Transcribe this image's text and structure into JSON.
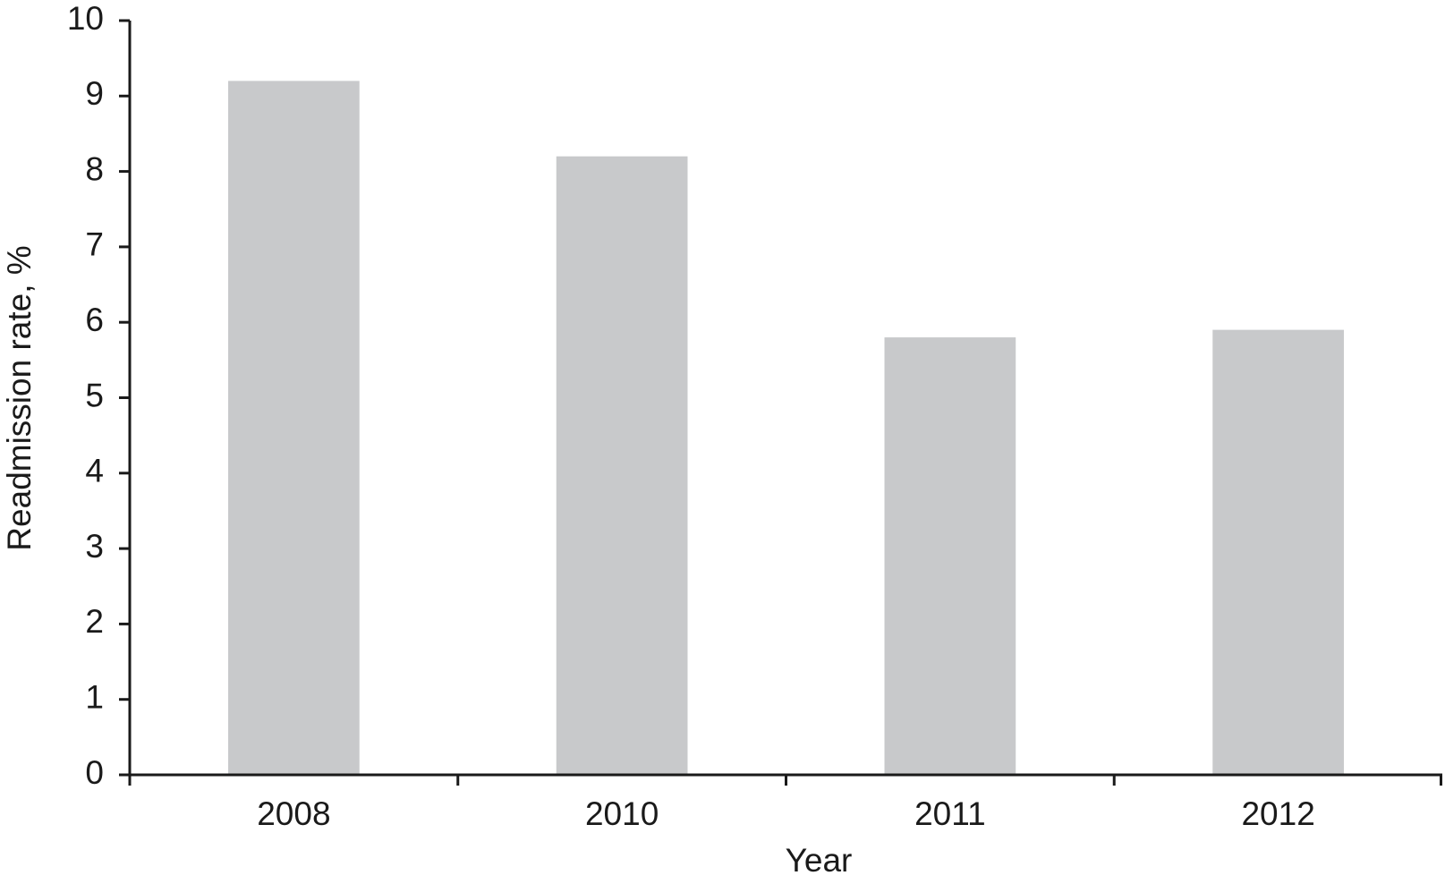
{
  "chart_data": {
    "type": "bar",
    "x_label": "Year",
    "y_label": "Readmission rate, %",
    "categories": [
      "2008",
      "2010",
      "2011",
      "2012"
    ],
    "values": [
      9.2,
      8.2,
      5.8,
      5.9
    ],
    "color": "#c8c9cb",
    "ylim": [
      0,
      10
    ],
    "yticks": [
      0,
      1,
      2,
      3,
      4,
      5,
      6,
      7,
      8,
      9,
      10
    ],
    "grid": false
  }
}
